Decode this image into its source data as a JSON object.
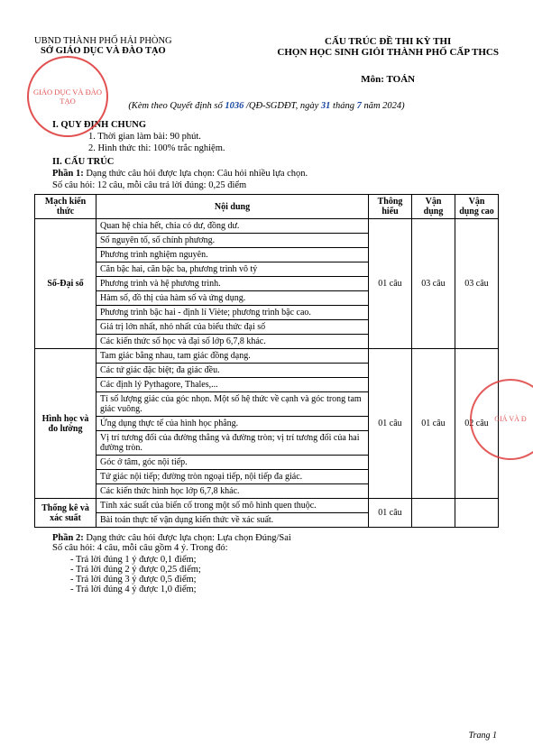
{
  "header": {
    "left_line1": "UBND THÀNH PHỐ HẢI PHÒNG",
    "left_line2": "SỞ GIÁO DỤC VÀ ĐÀO TẠO",
    "right_line1": "CẤU TRÚC ĐỀ THI KỲ THI",
    "right_line2": "CHỌN HỌC SINH GIỎI THÀNH PHỐ CẤP THCS",
    "subject": "Môn: TOÁN"
  },
  "stamp_text": "GIÁO DỤC\nVÀ ĐÀO TẠO",
  "stamp2_text": "GIÁ\nVÀ Đ",
  "issued": {
    "prefix": "(Kèm theo Quyết định số",
    "num": "1036",
    "mid": "/QĐ-SGDĐT, ngày",
    "day": "31",
    "mid2": "tháng",
    "month": "7",
    "suffix": "năm 2024)"
  },
  "sec1_title": "I. QUY ĐỊNH CHUNG",
  "sec1_items": [
    "1. Thời gian làm bài: 90 phút.",
    "2. Hình thức thi: 100% trắc nghiệm."
  ],
  "sec2_title": "II. CẤU TRÚC",
  "phan1": {
    "label": "Phần 1:",
    "text": "Dạng thức câu hỏi được lựa chọn: Câu hỏi nhiều lựa chọn.",
    "sub": "Số câu hỏi: 12 câu, mỗi câu trả lời đúng: 0,25 điểm"
  },
  "table": {
    "headers": [
      "Mạch kiến thức",
      "Nội dung",
      "Thông hiểu",
      "Vận dụng",
      "Vận dụng cao"
    ],
    "groups": [
      {
        "name": "Số-Đại số",
        "rows": [
          "Quan hệ chia hết, chia có dư, đồng dư.",
          "Số nguyên tố, số chính phương.",
          "Phương trình nghiệm nguyên.",
          "Căn bậc hai, căn bậc ba, phương trình vô tỷ",
          "Phương trình và hệ phương trình.",
          "Hàm số, đồ thị của hàm số và ứng dụng.",
          "Phương trình bậc hai - định lí Viète; phương trình bậc cao.",
          "Giá trị lớn nhất, nhỏ nhất của biểu thức đại số",
          "Các kiến thức số học và đại số lớp 6,7,8 khác."
        ],
        "th": "01 câu",
        "vd": "03 câu",
        "vdc": "03 câu"
      },
      {
        "name": "Hình học và đo lường",
        "rows": [
          "Tam giác bằng nhau, tam giác đồng dạng.",
          "Các tứ giác đặc biệt; đa giác đều.",
          "Các định lý Pythagore, Thales,...",
          "Tỉ số lượng giác của góc nhọn. Một số hệ thức về cạnh và góc trong tam giác vuông.",
          "Ứng dụng thực tế của hình học phẳng.",
          "Vị trí tương đối của đường thẳng và đường tròn; vị trí tương đối của hai đường tròn.",
          "Góc ở tâm, góc nội tiếp.",
          "Tứ giác nội tiếp; đường tròn ngoại tiếp, nội tiếp đa giác.",
          "Các kiến thức hình học lớp 6,7,8 khác."
        ],
        "th": "01 câu",
        "vd": "01 câu",
        "vdc": "02 câu"
      },
      {
        "name": "Thống kê và xác suất",
        "rows": [
          "Tính xác suất của biến cố trong một số mô hình quen thuộc.",
          "Bài toán thực tế vận dụng kiến thức về xác suất."
        ],
        "th": "01 câu",
        "vd": "",
        "vdc": ""
      }
    ]
  },
  "phan2": {
    "label": "Phần 2:",
    "text": "Dạng thức câu hỏi được lựa chọn: Lựa chọn Đúng/Sai",
    "sub": "Số câu hỏi: 4  câu, mỗi câu gồm 4 ý. Trong đó:",
    "items": [
      "Trả lời đúng 1 ý được 0,1 điểm;",
      "Trả lời đúng 2 ý được 0,25 điểm;",
      "Trả lời đúng 3 ý được 0,5 điểm;",
      "Trả lời đúng 4 ý được 1,0 điểm;"
    ]
  },
  "footer": "Trang 1"
}
